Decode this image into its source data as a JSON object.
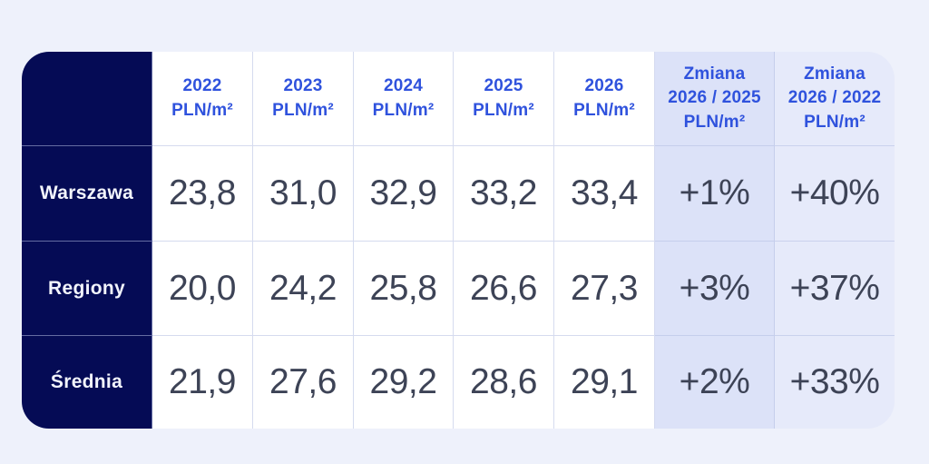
{
  "colors": {
    "page_background": "#eef1fb",
    "label_column_navy": "#050b55",
    "header_text_blue": "#2f52dd",
    "value_text": "#3d4356",
    "change_col_1_bg": "#dce2f8",
    "change_col_2_bg": "#e6eafa"
  },
  "table": {
    "headers": [
      "2022\nPLN/m²",
      "2023\nPLN/m²",
      "2024\nPLN/m²",
      "2025\nPLN/m²",
      "2026\nPLN/m²",
      "Zmiana\n2026 / 2025\nPLN/m²",
      "Zmiana\n2026 / 2022\nPLN/m²"
    ],
    "rows": [
      {
        "label": "Warszawa",
        "values": [
          "23,8",
          "31,0",
          "32,9",
          "33,2",
          "33,4",
          "+1%",
          "+40%"
        ]
      },
      {
        "label": "Regiony",
        "values": [
          "20,0",
          "24,2",
          "25,8",
          "26,6",
          "27,3",
          "+3%",
          "+37%"
        ]
      },
      {
        "label": "Średnia",
        "values": [
          "21,9",
          "27,6",
          "29,2",
          "28,6",
          "29,1",
          "+2%",
          "+33%"
        ]
      }
    ]
  },
  "chart_data": {
    "type": "table",
    "columns": [
      "2022 PLN/m²",
      "2023 PLN/m²",
      "2024 PLN/m²",
      "2025 PLN/m²",
      "2026 PLN/m²",
      "Zmiana 2026 / 2025 PLN/m²",
      "Zmiana 2026 / 2022 PLN/m²"
    ],
    "row_labels": [
      "Warszawa",
      "Regiony",
      "Średnia"
    ],
    "series": [
      {
        "name": "Warszawa",
        "values": [
          23.8,
          31.0,
          32.9,
          33.2,
          33.4
        ],
        "change_2026_2025": "+1%",
        "change_2026_2022": "+40%"
      },
      {
        "name": "Regiony",
        "values": [
          20.0,
          24.2,
          25.8,
          26.6,
          27.3
        ],
        "change_2026_2025": "+3%",
        "change_2026_2022": "+37%"
      },
      {
        "name": "Średnia",
        "values": [
          21.9,
          27.6,
          29.2,
          28.6,
          29.1
        ],
        "change_2026_2025": "+2%",
        "change_2026_2022": "+33%"
      }
    ],
    "unit": "PLN/m²"
  }
}
